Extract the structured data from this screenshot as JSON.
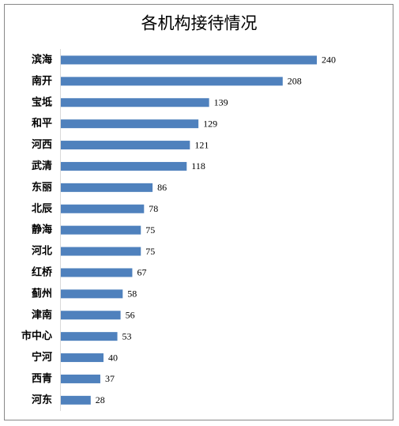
{
  "chart_data": {
    "type": "bar",
    "orientation": "horizontal",
    "title": "各机构接待情况",
    "categories": [
      "滨海",
      "南开",
      "宝坻",
      "和平",
      "河西",
      "武清",
      "东丽",
      "北辰",
      "静海",
      "河北",
      "红桥",
      "蓟州",
      "津南",
      "市中心",
      "宁河",
      "西青",
      "河东"
    ],
    "values": [
      240,
      208,
      139,
      129,
      121,
      118,
      86,
      78,
      75,
      75,
      67,
      58,
      56,
      53,
      40,
      37,
      28
    ],
    "color": "#4f81bd"
  }
}
